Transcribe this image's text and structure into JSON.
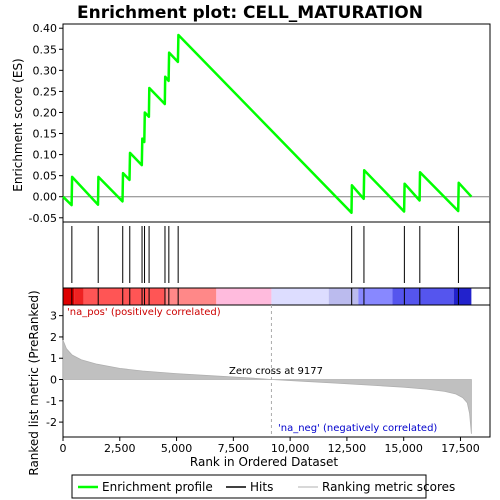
{
  "chart_data": {
    "type": "line",
    "title": "Enrichment plot: CELL_MATURATION",
    "xlabel": "Rank in Ordered Dataset",
    "top_ylabel": "Enrichment score (ES)",
    "bottom_ylabel": "Ranked list metric (PreRanked)",
    "xlim": [
      0,
      18800
    ],
    "x_ticks": [
      0,
      2500,
      5000,
      7500,
      10000,
      12500,
      15000,
      17500
    ],
    "x_tick_labels": [
      "0",
      "2,500",
      "5,000",
      "7,500",
      "10,000",
      "12,500",
      "15,000",
      "17,500"
    ],
    "es_ylim": [
      -0.06,
      0.41
    ],
    "es_ticks": [
      -0.05,
      0.0,
      0.05,
      0.1,
      0.15,
      0.2,
      0.25,
      0.3,
      0.35,
      0.4
    ],
    "es_tick_labels": [
      "-0.05",
      "0.00",
      "0.05",
      "0.10",
      "0.15",
      "0.20",
      "0.25",
      "0.30",
      "0.35",
      "0.40"
    ],
    "metric_ylim": [
      -2.7,
      3.5
    ],
    "metric_ticks": [
      -2,
      -1,
      0,
      1,
      2,
      3
    ],
    "metric_tick_labels": [
      "-2",
      "-1",
      "0",
      "1",
      "2",
      "3"
    ],
    "series": [
      {
        "name": "Enrichment profile",
        "color": "#00ff00",
        "x": [
          0,
          380,
          400,
          1540,
          1560,
          2620,
          2640,
          2930,
          2950,
          3470,
          3490,
          3580,
          3600,
          3780,
          3800,
          4480,
          4500,
          4650,
          4670,
          5060,
          5080,
          12700,
          12720,
          13240,
          13260,
          15020,
          15040,
          15700,
          15720,
          17400,
          17420,
          17980
        ],
        "y": [
          0.0,
          -0.02,
          0.047,
          -0.019,
          0.047,
          -0.011,
          0.056,
          0.04,
          0.104,
          0.075,
          0.138,
          0.13,
          0.2,
          0.19,
          0.258,
          0.22,
          0.285,
          0.275,
          0.342,
          0.32,
          0.384,
          -0.038,
          0.027,
          -0.005,
          0.063,
          -0.035,
          0.031,
          -0.009,
          0.058,
          -0.034,
          0.033,
          0.0
        ]
      }
    ],
    "hits": [
      390,
      1550,
      2630,
      2940,
      3480,
      3590,
      3790,
      4490,
      4660,
      5070,
      12710,
      13250,
      15030,
      15710,
      17410
    ],
    "metric_scores": {
      "x": [
        0,
        150,
        400,
        800,
        1500,
        2500,
        3500,
        5000,
        6500,
        8000,
        9177,
        10500,
        12000,
        13500,
        15000,
        16000,
        16800,
        17300,
        17600,
        17800,
        17900,
        17980
      ],
      "y": [
        1.85,
        1.45,
        1.15,
        0.93,
        0.72,
        0.52,
        0.4,
        0.28,
        0.18,
        0.09,
        0.0,
        -0.08,
        -0.17,
        -0.26,
        -0.36,
        -0.45,
        -0.56,
        -0.68,
        -0.85,
        -1.1,
        -1.6,
        -2.55
      ]
    },
    "zero_cross_rank": 9177,
    "zero_cross_label": "Zero cross at 9177",
    "pos_label": "'na_pos' (positively correlated)",
    "neg_label": "'na_neg' (negatively correlated)",
    "pos_label_color": "#cc0000",
    "neg_label_color": "#0000cc",
    "colorbar_segments": [
      {
        "from": 0,
        "to": 500,
        "color": "#dd0000"
      },
      {
        "from": 500,
        "to": 900,
        "color": "#ee2222"
      },
      {
        "from": 900,
        "to": 4500,
        "color": "#ff5555"
      },
      {
        "from": 4500,
        "to": 6750,
        "color": "#ff8888"
      },
      {
        "from": 6750,
        "to": 9177,
        "color": "#ffbbdd"
      },
      {
        "from": 9177,
        "to": 11700,
        "color": "#ddddff"
      },
      {
        "from": 11700,
        "to": 13000,
        "color": "#bbbbee"
      },
      {
        "from": 13000,
        "to": 14500,
        "color": "#8888ff"
      },
      {
        "from": 14500,
        "to": 17200,
        "color": "#5555ee"
      },
      {
        "from": 17200,
        "to": 17980,
        "color": "#2222cc"
      }
    ],
    "legend": [
      {
        "label": "Enrichment profile",
        "kind": "line",
        "color": "#00ff00"
      },
      {
        "label": "Hits",
        "kind": "line",
        "color": "#000000"
      },
      {
        "label": "Ranking metric scores",
        "kind": "line",
        "color": "#cccccc"
      }
    ]
  }
}
